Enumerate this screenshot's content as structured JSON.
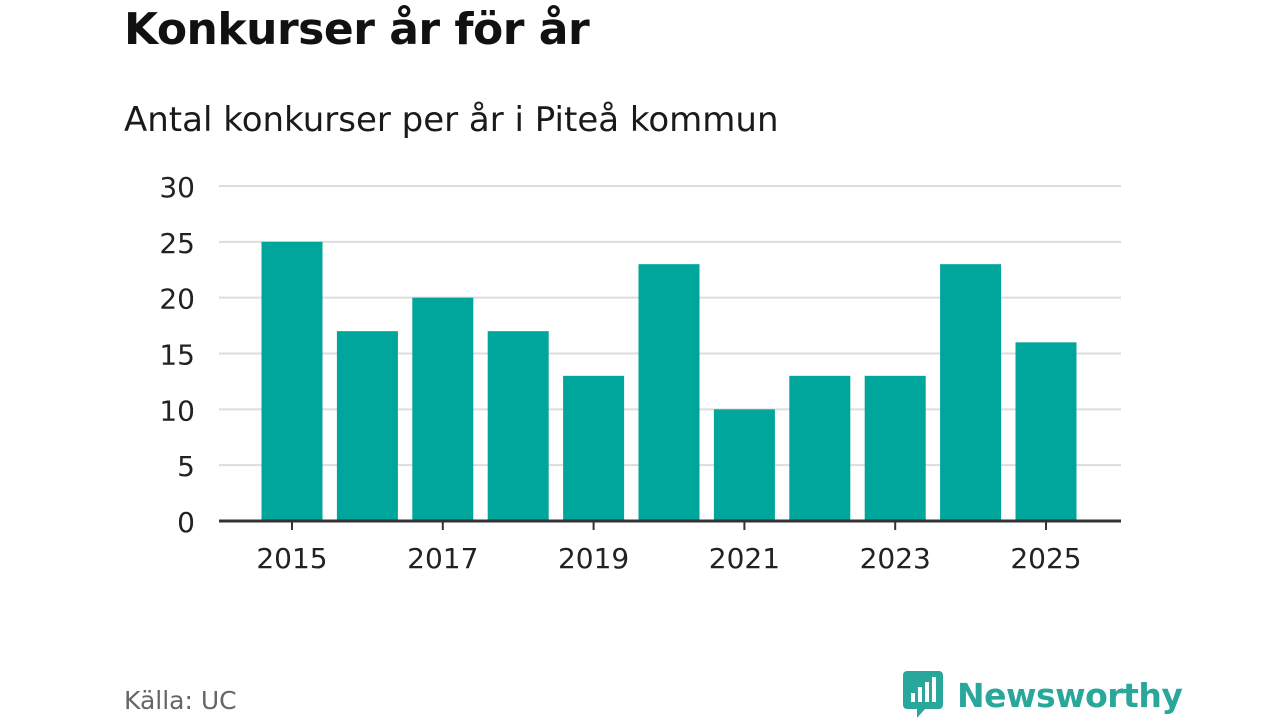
{
  "header": {
    "title": "Konkurser år för år",
    "subtitle": "Antal konkurser per år i Piteå kommun"
  },
  "footer": {
    "source": "Källa: UC",
    "brand": "Newsworthy"
  },
  "colors": {
    "bar": "#00a59b",
    "grid": "#dddddd",
    "axis": "#333333",
    "brand": "#2aa79b"
  },
  "chart_data": {
    "type": "bar",
    "title": "Konkurser år för år",
    "subtitle": "Antal konkurser per år i Piteå kommun",
    "xlabel": "",
    "ylabel": "",
    "categories": [
      "2015",
      "2016",
      "2017",
      "2018",
      "2019",
      "2020",
      "2021",
      "2022",
      "2023",
      "2024",
      "2025"
    ],
    "values": [
      25,
      17,
      20,
      17,
      13,
      23,
      10,
      13,
      13,
      23,
      16
    ],
    "x_tick_labels": [
      "2015",
      "2017",
      "2019",
      "2021",
      "2023",
      "2025"
    ],
    "y_ticks": [
      0,
      5,
      10,
      15,
      20,
      25,
      30
    ],
    "ylim": [
      0,
      30
    ],
    "grid": true,
    "legend": "none"
  }
}
